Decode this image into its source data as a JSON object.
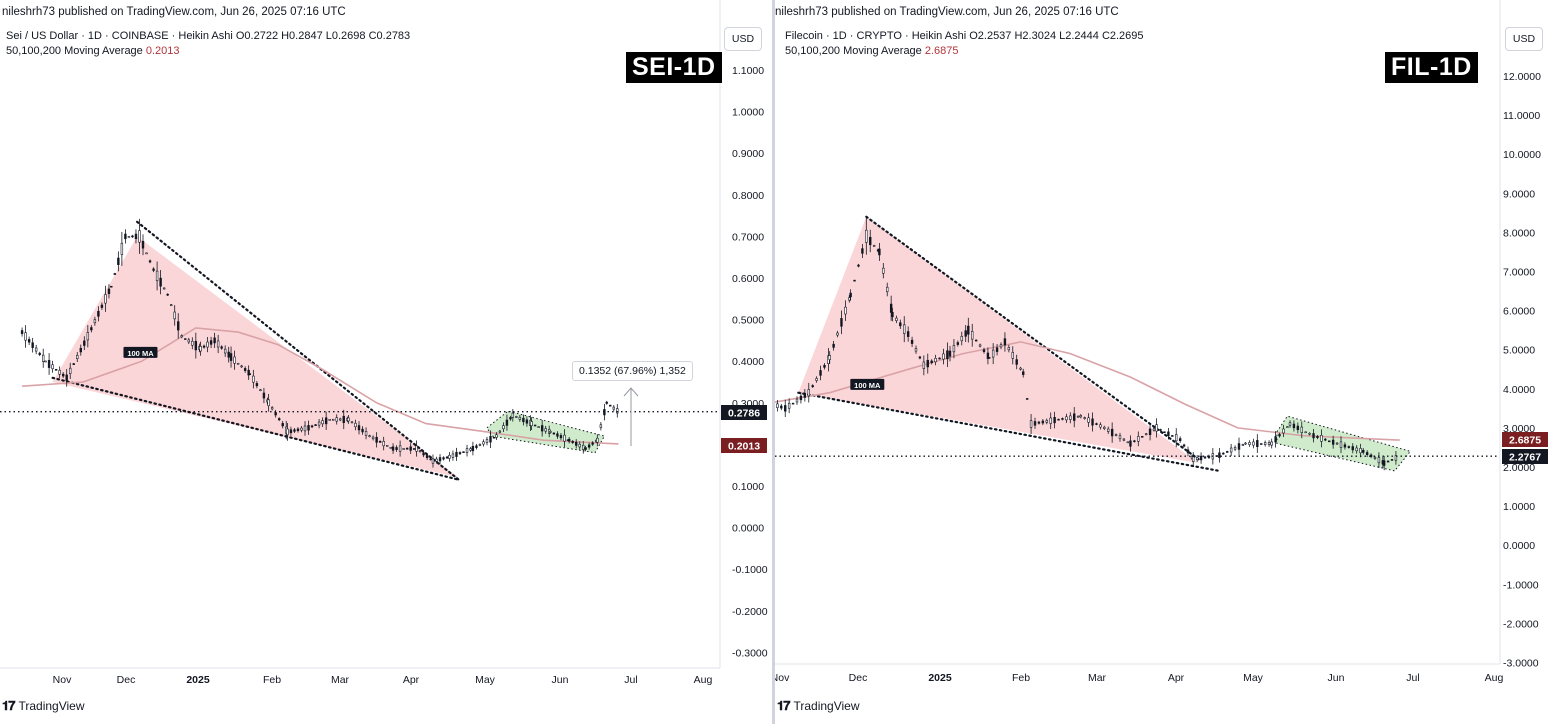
{
  "left": {
    "published": "nileshrh73 published on TradingView.com, Jun 26, 2025 07:16 UTC",
    "symbol_line": "Sei / US Dollar · 1D · COINBASE · Heikin Ashi",
    "ohlc": "O0.2722  H0.2847  L0.2698  C0.2783",
    "ma_label": "50,100,200 Moving Average",
    "ma_value": "0.2013",
    "currency": "USD",
    "badge": "SEI-1D",
    "ma_tag": "100 MA",
    "measure": "0.1352 (67.96%) 1,352",
    "price_tag": "0.2786",
    "ma_tag_price": "0.2013",
    "footer": "TradingView"
  },
  "right": {
    "published": "nileshrh73 published on TradingView.com, Jun 26, 2025 07:16 UTC",
    "symbol_line": "Filecoin · 1D · CRYPTO · Heikin Ashi",
    "ohlc": "O2.2537  H2.3024  L2.2444  C2.2695",
    "ma_label": "50,100,200 Moving Average",
    "ma_value": "2.6875",
    "currency": "USD",
    "badge": "FIL-1D",
    "ma_tag": "100 MA",
    "price_tag": "2.2767",
    "ma_tag_price": "2.6875",
    "footer": "TradingView"
  },
  "colors": {
    "ma_line": "#d9a2a6",
    "red_wedge": "#f7a4a8",
    "green_channel": "#a8dba0",
    "price_tag_bg": "#131722",
    "ma_tag_bg": "#7b1e22"
  },
  "chart_data": [
    {
      "type": "candlestick",
      "series_name": "Sei / US Dollar",
      "y_ticks": [
        "1.1000",
        "1.0000",
        "0.9000",
        "0.8000",
        "0.7000",
        "0.6000",
        "0.5000",
        "0.4000",
        "0.3000",
        "0.2000",
        "0.1000",
        "0.0000",
        "-0.1000",
        "-0.2000",
        "-0.3000"
      ],
      "x_ticks": [
        "Nov",
        "Dec",
        "2025",
        "Feb",
        "Mar",
        "Apr",
        "May",
        "Jun",
        "Jul",
        "Aug"
      ],
      "ylim": [
        -0.32,
        1.14
      ],
      "last_close": 0.2786,
      "ma_100_last": 0.2013,
      "price_path": [
        [
          "2024-10-15",
          0.47
        ],
        [
          "2024-10-25",
          0.4
        ],
        [
          "2024-11-03",
          0.36
        ],
        [
          "2024-11-12",
          0.46
        ],
        [
          "2024-11-22",
          0.58
        ],
        [
          "2024-11-28",
          0.7
        ],
        [
          "2024-12-04",
          0.7
        ],
        [
          "2024-12-10",
          0.62
        ],
        [
          "2024-12-16",
          0.56
        ],
        [
          "2024-12-22",
          0.46
        ],
        [
          "2024-12-30",
          0.43
        ],
        [
          "2025-01-05",
          0.45
        ],
        [
          "2025-01-12",
          0.41
        ],
        [
          "2025-01-20",
          0.37
        ],
        [
          "2025-01-28",
          0.3
        ],
        [
          "2025-02-05",
          0.23
        ],
        [
          "2025-02-14",
          0.24
        ],
        [
          "2025-02-23",
          0.26
        ],
        [
          "2025-03-03",
          0.26
        ],
        [
          "2025-03-12",
          0.22
        ],
        [
          "2025-03-22",
          0.19
        ],
        [
          "2025-04-01",
          0.19
        ],
        [
          "2025-04-08",
          0.16
        ],
        [
          "2025-04-15",
          0.17
        ],
        [
          "2025-04-25",
          0.19
        ],
        [
          "2025-05-05",
          0.22
        ],
        [
          "2025-05-12",
          0.27
        ],
        [
          "2025-05-20",
          0.25
        ],
        [
          "2025-05-28",
          0.23
        ],
        [
          "2025-06-05",
          0.21
        ],
        [
          "2025-06-12",
          0.19
        ],
        [
          "2025-06-17",
          0.21
        ],
        [
          "2025-06-21",
          0.3
        ],
        [
          "2025-06-26",
          0.2786
        ]
      ],
      "ma_path": [
        [
          "2024-10-15",
          0.34
        ],
        [
          "2024-11-10",
          0.35
        ],
        [
          "2024-12-05",
          0.4
        ],
        [
          "2024-12-28",
          0.48
        ],
        [
          "2025-01-15",
          0.47
        ],
        [
          "2025-02-01",
          0.44
        ],
        [
          "2025-02-20",
          0.38
        ],
        [
          "2025-03-15",
          0.3
        ],
        [
          "2025-04-05",
          0.25
        ],
        [
          "2025-05-01",
          0.23
        ],
        [
          "2025-05-25",
          0.21
        ],
        [
          "2025-06-26",
          0.2013
        ]
      ]
    },
    {
      "type": "candlestick",
      "series_name": "Filecoin",
      "y_ticks": [
        "12.0000",
        "11.0000",
        "10.0000",
        "9.0000",
        "8.0000",
        "7.0000",
        "6.0000",
        "5.0000",
        "4.0000",
        "3.0000",
        "2.0000",
        "1.0000",
        "0.0000",
        "-1.0000",
        "-2.0000",
        "-3.0000"
      ],
      "x_ticks": [
        "Nov",
        "Dec",
        "2025",
        "Feb",
        "Mar",
        "Apr",
        "May",
        "Jun",
        "Jul",
        "Aug"
      ],
      "ylim": [
        -3.2,
        12.8
      ],
      "last_close": 2.2767,
      "ma_100_last": 2.6875,
      "price_path": [
        [
          "2024-10-25",
          3.7
        ],
        [
          "2024-11-03",
          3.5
        ],
        [
          "2024-11-12",
          3.9
        ],
        [
          "2024-11-20",
          4.8
        ],
        [
          "2024-11-28",
          6.4
        ],
        [
          "2024-12-04",
          7.9
        ],
        [
          "2024-12-09",
          7.5
        ],
        [
          "2024-12-14",
          5.9
        ],
        [
          "2024-12-20",
          5.4
        ],
        [
          "2024-12-26",
          4.6
        ],
        [
          "2025-01-05",
          4.9
        ],
        [
          "2025-01-12",
          5.5
        ],
        [
          "2025-01-20",
          4.8
        ],
        [
          "2025-01-26",
          5.2
        ],
        [
          "2025-02-02",
          4.4
        ],
        [
          "2025-02-05",
          3.1
        ],
        [
          "2025-02-14",
          3.2
        ],
        [
          "2025-02-24",
          3.3
        ],
        [
          "2025-03-05",
          3.0
        ],
        [
          "2025-03-15",
          2.6
        ],
        [
          "2025-03-25",
          3.0
        ],
        [
          "2025-04-03",
          2.7
        ],
        [
          "2025-04-08",
          2.2
        ],
        [
          "2025-04-18",
          2.3
        ],
        [
          "2025-04-28",
          2.6
        ],
        [
          "2025-05-08",
          2.6
        ],
        [
          "2025-05-15",
          3.1
        ],
        [
          "2025-05-24",
          2.8
        ],
        [
          "2025-06-02",
          2.6
        ],
        [
          "2025-06-12",
          2.4
        ],
        [
          "2025-06-20",
          2.1
        ],
        [
          "2025-06-26",
          2.2767
        ]
      ],
      "ma_path": [
        [
          "2024-10-25",
          3.6
        ],
        [
          "2024-11-20",
          3.9
        ],
        [
          "2024-12-20",
          4.5
        ],
        [
          "2025-01-10",
          4.9
        ],
        [
          "2025-02-01",
          5.2
        ],
        [
          "2025-02-20",
          4.9
        ],
        [
          "2025-03-15",
          4.3
        ],
        [
          "2025-04-05",
          3.6
        ],
        [
          "2025-04-25",
          3.0
        ],
        [
          "2025-05-20",
          2.8
        ],
        [
          "2025-06-26",
          2.6875
        ]
      ]
    }
  ]
}
